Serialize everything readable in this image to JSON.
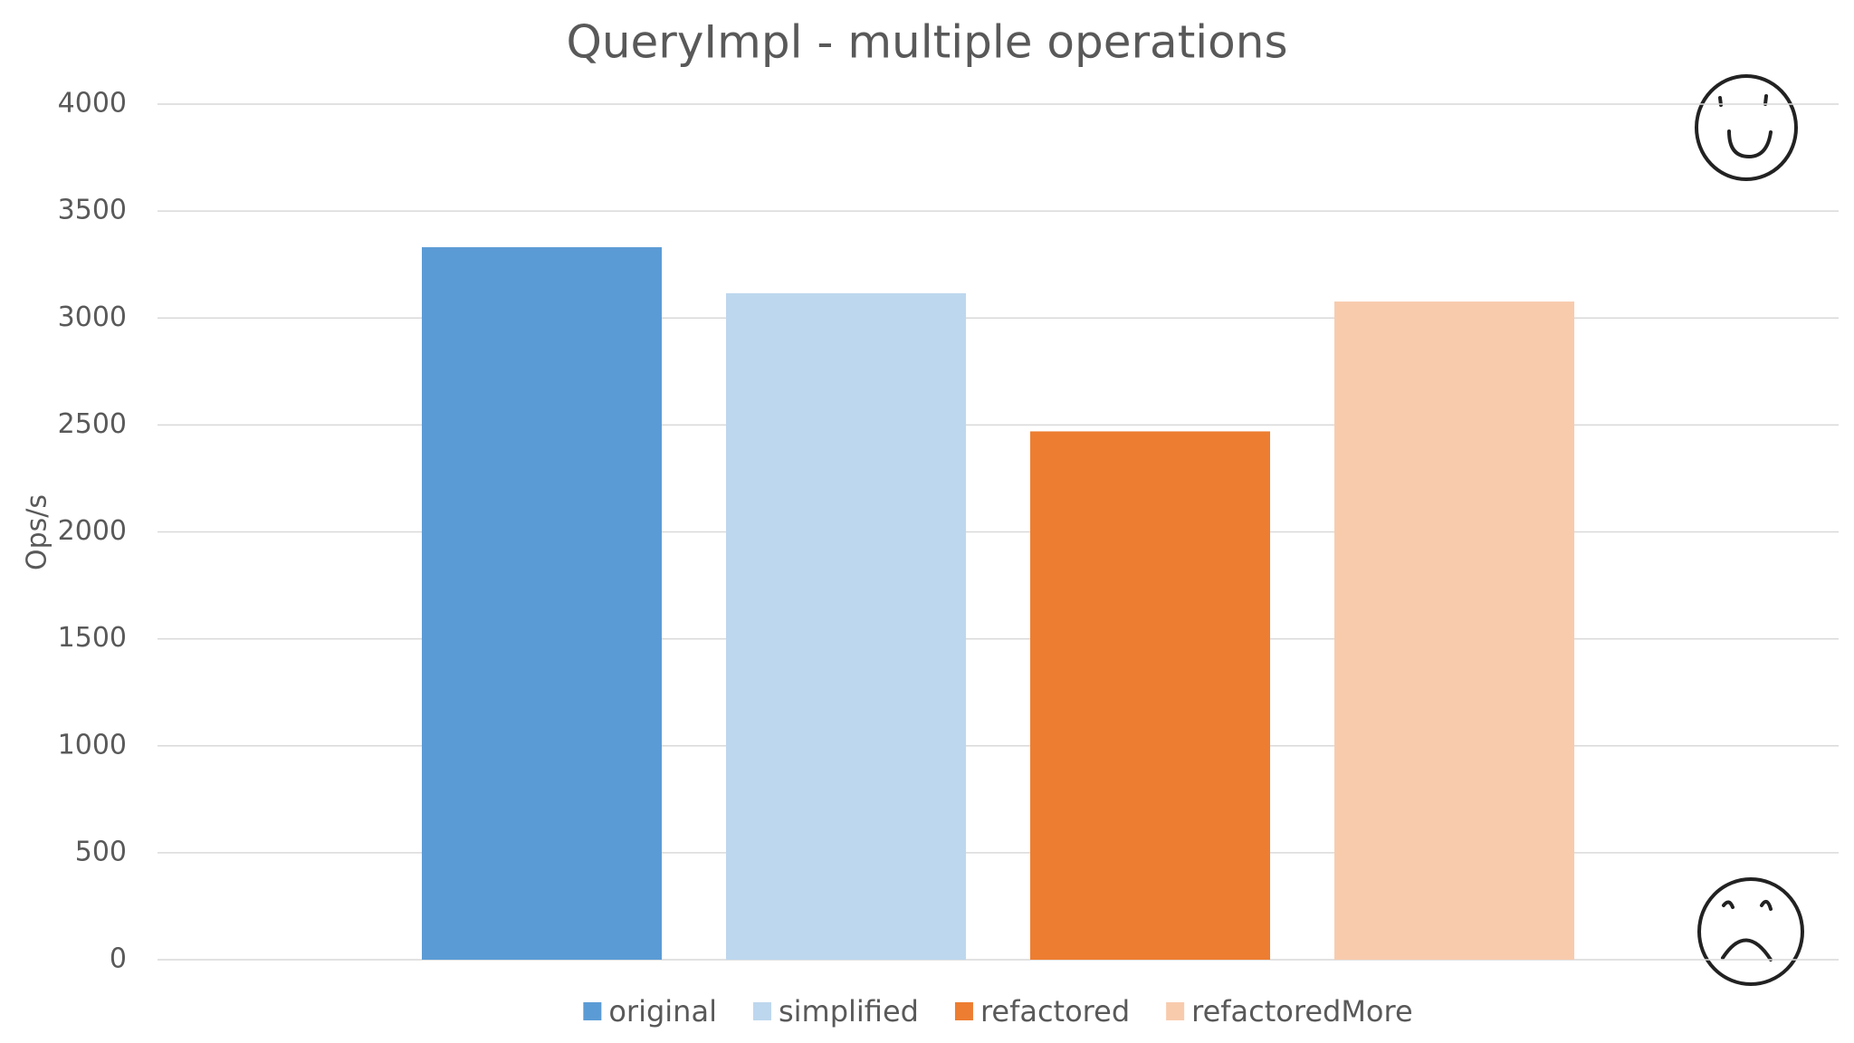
{
  "chart_data": {
    "type": "bar",
    "title": "QueryImpl - multiple operations",
    "y_label": "Ops/s",
    "categories": [
      null
    ],
    "series": [
      {
        "name": "original",
        "color": "#5b9bd5",
        "values": [
          3331
        ]
      },
      {
        "name": "simplified",
        "color": "#bdd7ee",
        "values": [
          3116
        ]
      },
      {
        "name": "refactored",
        "color": "#ed7d31",
        "values": [
          2470
        ]
      },
      {
        "name": "refactoredMore",
        "color": "#f8cbad",
        "values": [
          3077
        ]
      }
    ],
    "ylim": [
      0,
      4000
    ],
    "yticks": [
      0,
      500,
      1000,
      1500,
      2000,
      2500,
      3000,
      3500,
      4000
    ],
    "grid": true,
    "legend": "bottom"
  }
}
